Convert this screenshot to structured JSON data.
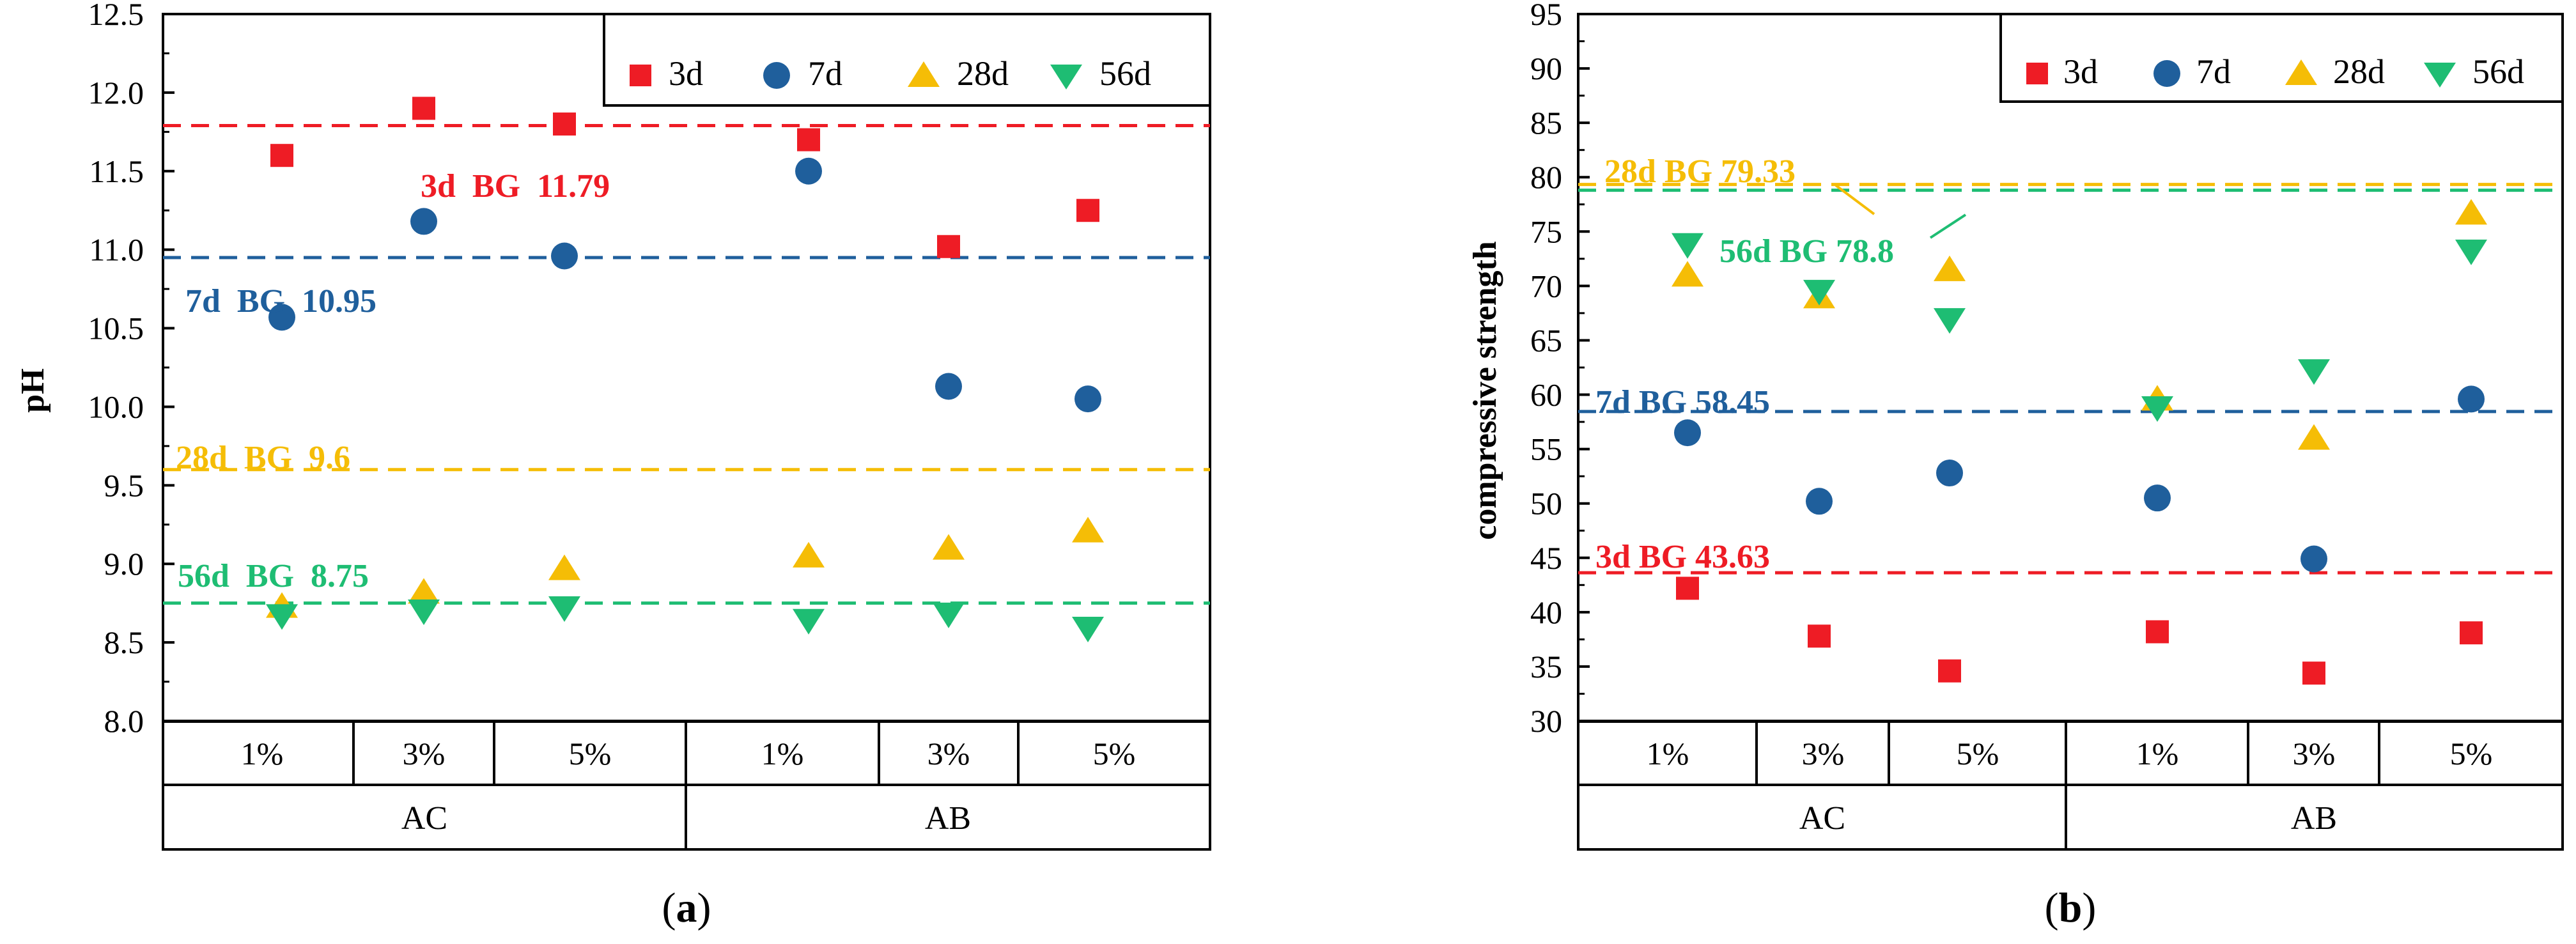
{
  "chart_data": [
    {
      "type": "scatter",
      "panel": "a",
      "panel_label": "a",
      "ylabel": "pH",
      "ylim": [
        8.0,
        12.5
      ],
      "ytick_step": 0.5,
      "yticks": [
        "8.0",
        "8.5",
        "9.0",
        "9.5",
        "10.0",
        "10.5",
        "11.0",
        "11.5",
        "12.0",
        "12.5"
      ],
      "groups": [
        {
          "name": "AC",
          "categories": [
            "1%",
            "3%",
            "5%"
          ]
        },
        {
          "name": "AB",
          "categories": [
            "1%",
            "3%",
            "5%"
          ]
        }
      ],
      "legend": [
        "3d",
        "7d",
        "28d",
        "56d"
      ],
      "series": [
        {
          "name": "3d",
          "color": "#ee1c25",
          "marker": "square",
          "values": [
            11.6,
            11.9,
            11.8,
            11.7,
            11.02,
            11.25
          ]
        },
        {
          "name": "7d",
          "color": "#1f5f9c",
          "marker": "circle",
          "values": [
            10.57,
            11.18,
            10.96,
            11.5,
            10.13,
            10.05
          ]
        },
        {
          "name": "28d",
          "color": "#f5bd06",
          "marker": "triangle-up",
          "values": [
            8.73,
            8.82,
            8.97,
            9.05,
            9.1,
            9.21
          ]
        },
        {
          "name": "56d",
          "color": "#1ebd73",
          "marker": "triangle-down",
          "values": [
            8.67,
            8.7,
            8.72,
            8.64,
            8.68,
            8.59
          ]
        }
      ],
      "reference_lines": [
        {
          "series": "3d",
          "value": 11.79,
          "label": "3d  BG  11.79"
        },
        {
          "series": "7d",
          "value": 10.95,
          "label": "7d  BG  10.95"
        },
        {
          "series": "28d",
          "value": 9.6,
          "label": "28d  BG  9.6"
        },
        {
          "series": "56d",
          "value": 8.75,
          "label": "56d  BG  8.75"
        }
      ]
    },
    {
      "type": "scatter",
      "panel": "b",
      "panel_label": "b",
      "ylabel": "compressive strength",
      "ylim": [
        30,
        95
      ],
      "ytick_step": 5,
      "yticks": [
        "30",
        "35",
        "40",
        "45",
        "50",
        "55",
        "60",
        "65",
        "70",
        "75",
        "80",
        "85",
        "90",
        "95"
      ],
      "groups": [
        {
          "name": "AC",
          "categories": [
            "1%",
            "3%",
            "5%"
          ]
        },
        {
          "name": "AB",
          "categories": [
            "1%",
            "3%",
            "5%"
          ]
        }
      ],
      "legend": [
        "3d",
        "7d",
        "28d",
        "56d"
      ],
      "series": [
        {
          "name": "3d",
          "color": "#ee1c25",
          "marker": "square",
          "values": [
            42.2,
            37.8,
            34.6,
            38.2,
            34.4,
            38.1
          ]
        },
        {
          "name": "7d",
          "color": "#1f5f9c",
          "marker": "circle",
          "values": [
            56.5,
            50.2,
            52.8,
            50.5,
            44.9,
            59.6
          ]
        },
        {
          "name": "28d",
          "color": "#f5bd06",
          "marker": "triangle-up",
          "values": [
            71.0,
            69.0,
            71.5,
            59.6,
            56.0,
            76.7
          ]
        },
        {
          "name": "56d",
          "color": "#1ebd73",
          "marker": "triangle-down",
          "values": [
            73.8,
            69.5,
            66.9,
            58.8,
            62.2,
            73.2
          ]
        }
      ],
      "reference_lines": [
        {
          "series": "28d",
          "value": 79.33,
          "label": "28d BG 79.33"
        },
        {
          "series": "56d",
          "value": 78.8,
          "label": "56d BG 78.8"
        },
        {
          "series": "7d",
          "value": 58.45,
          "label": "7d BG 58.45"
        },
        {
          "series": "3d",
          "value": 43.63,
          "label": "3d BG 43.63"
        }
      ]
    }
  ]
}
